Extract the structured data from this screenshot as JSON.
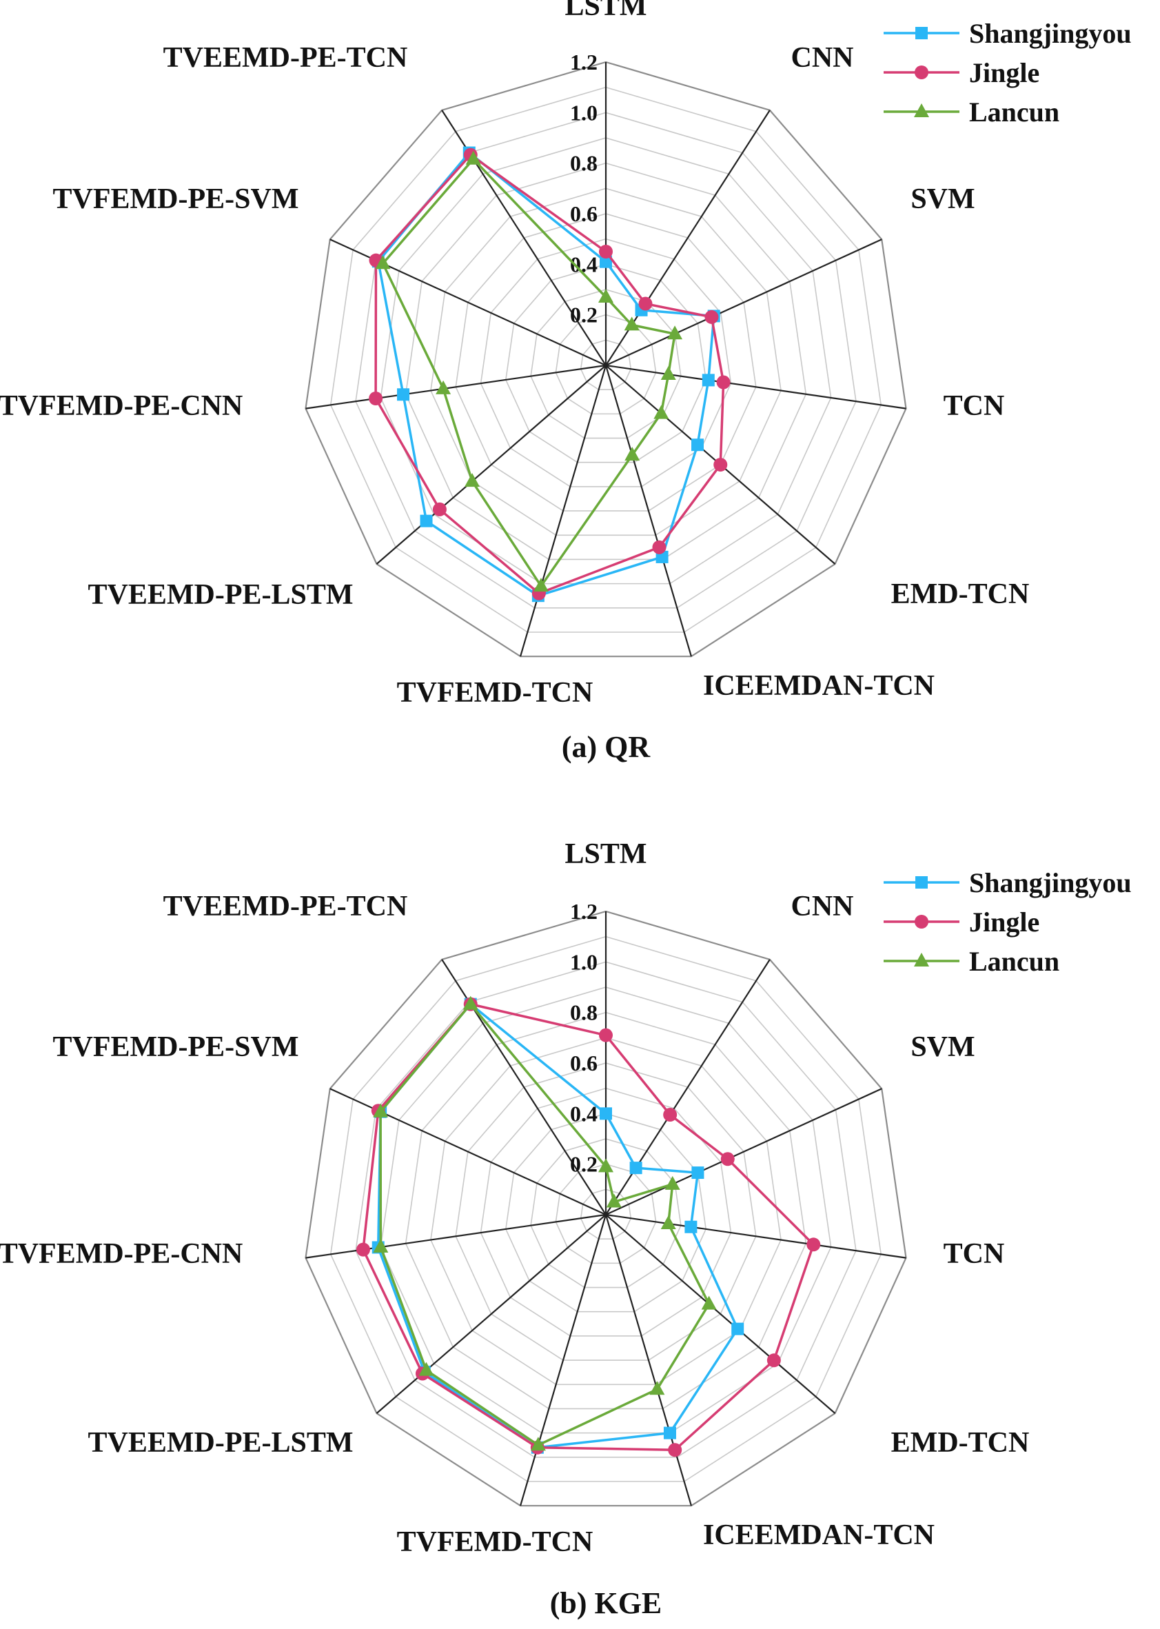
{
  "series_style": [
    {
      "name": "Shangjingyou",
      "color": "#29b6f6",
      "marker": "square"
    },
    {
      "name": "Jingle",
      "color": "#d63c72",
      "marker": "circle"
    },
    {
      "name": "Lancun",
      "color": "#6aaa3a",
      "marker": "triangle"
    }
  ],
  "chart_data": [
    {
      "type": "radar",
      "caption": "(a) QR",
      "categories": [
        "LSTM",
        "CNN",
        "SVM",
        "TCN",
        "EMD-TCN",
        "ICEEMDAN-TCN",
        "TVFEMD-TCN",
        "TVEEMD-PE-LSTM",
        "TVFEMD-PE-CNN",
        "TVFEMD-PE-SVM",
        "TVEEMD-PE-TCN"
      ],
      "rlim": [
        0,
        1.2
      ],
      "ticks": [
        "0.2",
        "0.4",
        "0.6",
        "0.8",
        "1.0",
        "1.2"
      ],
      "tick_values": [
        0.2,
        0.4,
        0.6,
        0.8,
        1.0,
        1.2
      ],
      "legend_position": "top-right",
      "series": [
        {
          "name": "Shangjingyou",
          "values": [
            0.41,
            0.26,
            0.47,
            0.41,
            0.48,
            0.79,
            0.95,
            0.94,
            0.81,
            0.99,
            1.0
          ]
        },
        {
          "name": "Jingle",
          "values": [
            0.45,
            0.29,
            0.46,
            0.47,
            0.6,
            0.75,
            0.94,
            0.87,
            0.92,
            1.0,
            0.99
          ]
        },
        {
          "name": "Lancun",
          "values": [
            0.27,
            0.19,
            0.3,
            0.25,
            0.29,
            0.37,
            0.91,
            0.7,
            0.65,
            0.97,
            0.97
          ]
        }
      ]
    },
    {
      "type": "radar",
      "caption": "(b)  KGE",
      "categories": [
        "LSTM",
        "CNN",
        "SVM",
        "TCN",
        "EMD-TCN",
        "ICEEMDAN-TCN",
        "TVFEMD-TCN",
        "TVEEMD-PE-LSTM",
        "TVFEMD-PE-CNN",
        "TVFEMD-PE-SVM",
        "TVEEMD-PE-TCN"
      ],
      "rlim": [
        0,
        1.2
      ],
      "ticks": [
        "0.2",
        "0.4",
        "0.6",
        "0.8",
        "1.0",
        "1.2"
      ],
      "tick_values": [
        0.2,
        0.4,
        0.6,
        0.8,
        1.0,
        1.2
      ],
      "legend_position": "top-right",
      "series": [
        {
          "name": "Shangjingyou",
          "values": [
            0.4,
            0.22,
            0.4,
            0.34,
            0.69,
            0.9,
            0.96,
            0.95,
            0.91,
            0.98,
            0.99
          ]
        },
        {
          "name": "Jingle",
          "values": [
            0.71,
            0.47,
            0.53,
            0.83,
            0.88,
            0.97,
            0.96,
            0.96,
            0.97,
            0.99,
            0.99
          ]
        },
        {
          "name": "Lancun",
          "values": [
            0.19,
            0.06,
            0.29,
            0.25,
            0.54,
            0.72,
            0.95,
            0.94,
            0.9,
            0.98,
            0.99
          ]
        }
      ]
    }
  ]
}
